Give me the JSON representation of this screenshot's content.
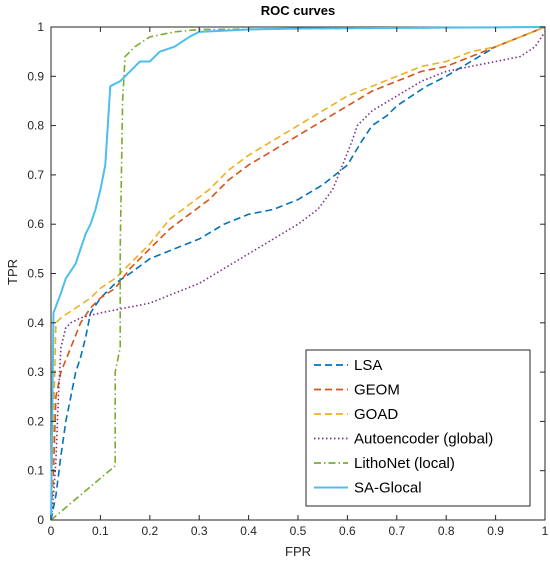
{
  "chart_data": {
    "type": "line",
    "title": "ROC curves",
    "xlabel": "FPR",
    "ylabel": "TPR",
    "xlim": [
      0,
      1
    ],
    "ylim": [
      0,
      1
    ],
    "xticks": [
      0,
      0.1,
      0.2,
      0.3,
      0.4,
      0.5,
      0.6,
      0.7,
      0.8,
      0.9,
      1
    ],
    "xtick_labels": [
      "0",
      "0.1",
      "0.2",
      "0.3",
      "0.4",
      "0.5",
      "0.6",
      "0.7",
      "0.8",
      "0.9",
      "1"
    ],
    "yticks": [
      0,
      0.1,
      0.2,
      0.3,
      0.4,
      0.5,
      0.6,
      0.7,
      0.8,
      0.9,
      1
    ],
    "ytick_labels": [
      "0",
      "0.1",
      "0.2",
      "0.3",
      "0.4",
      "0.5",
      "0.6",
      "0.7",
      "0.8",
      "0.9",
      "1"
    ],
    "grid": false,
    "legend_position": "bottom-right",
    "series": [
      {
        "name": "LSA",
        "color": "#0072BD",
        "dash": "dashed",
        "points": [
          [
            0,
            0
          ],
          [
            0.01,
            0.05
          ],
          [
            0.02,
            0.13
          ],
          [
            0.03,
            0.2
          ],
          [
            0.04,
            0.25
          ],
          [
            0.05,
            0.3
          ],
          [
            0.06,
            0.33
          ],
          [
            0.07,
            0.37
          ],
          [
            0.08,
            0.42
          ],
          [
            0.1,
            0.45
          ],
          [
            0.13,
            0.48
          ],
          [
            0.16,
            0.5
          ],
          [
            0.2,
            0.53
          ],
          [
            0.25,
            0.55
          ],
          [
            0.3,
            0.57
          ],
          [
            0.35,
            0.6
          ],
          [
            0.4,
            0.62
          ],
          [
            0.45,
            0.63
          ],
          [
            0.5,
            0.65
          ],
          [
            0.55,
            0.68
          ],
          [
            0.6,
            0.72
          ],
          [
            0.63,
            0.77
          ],
          [
            0.65,
            0.8
          ],
          [
            0.68,
            0.82
          ],
          [
            0.7,
            0.84
          ],
          [
            0.73,
            0.86
          ],
          [
            0.76,
            0.88
          ],
          [
            0.8,
            0.9
          ],
          [
            0.85,
            0.93
          ],
          [
            0.9,
            0.96
          ],
          [
            0.95,
            0.98
          ],
          [
            1,
            1
          ]
        ]
      },
      {
        "name": "GEOM",
        "color": "#D95319",
        "dash": "dashed",
        "points": [
          [
            0,
            0
          ],
          [
            0.005,
            0.1
          ],
          [
            0.01,
            0.25
          ],
          [
            0.02,
            0.3
          ],
          [
            0.04,
            0.35
          ],
          [
            0.06,
            0.4
          ],
          [
            0.08,
            0.43
          ],
          [
            0.1,
            0.45
          ],
          [
            0.13,
            0.47
          ],
          [
            0.16,
            0.51
          ],
          [
            0.2,
            0.55
          ],
          [
            0.24,
            0.59
          ],
          [
            0.28,
            0.62
          ],
          [
            0.32,
            0.65
          ],
          [
            0.36,
            0.69
          ],
          [
            0.4,
            0.72
          ],
          [
            0.45,
            0.75
          ],
          [
            0.5,
            0.78
          ],
          [
            0.55,
            0.81
          ],
          [
            0.6,
            0.84
          ],
          [
            0.65,
            0.87
          ],
          [
            0.7,
            0.89
          ],
          [
            0.75,
            0.91
          ],
          [
            0.8,
            0.92
          ],
          [
            0.85,
            0.94
          ],
          [
            0.9,
            0.96
          ],
          [
            0.95,
            0.98
          ],
          [
            1,
            1
          ]
        ]
      },
      {
        "name": "GOAD",
        "color": "#EDB120",
        "dash": "dashed",
        "points": [
          [
            0,
            0
          ],
          [
            0.005,
            0.2
          ],
          [
            0.01,
            0.4
          ],
          [
            0.02,
            0.41
          ],
          [
            0.05,
            0.43
          ],
          [
            0.08,
            0.45
          ],
          [
            0.1,
            0.47
          ],
          [
            0.13,
            0.49
          ],
          [
            0.16,
            0.52
          ],
          [
            0.2,
            0.56
          ],
          [
            0.24,
            0.61
          ],
          [
            0.28,
            0.64
          ],
          [
            0.32,
            0.67
          ],
          [
            0.36,
            0.71
          ],
          [
            0.4,
            0.74
          ],
          [
            0.45,
            0.77
          ],
          [
            0.5,
            0.8
          ],
          [
            0.55,
            0.83
          ],
          [
            0.6,
            0.86
          ],
          [
            0.65,
            0.88
          ],
          [
            0.7,
            0.9
          ],
          [
            0.75,
            0.92
          ],
          [
            0.8,
            0.93
          ],
          [
            0.85,
            0.95
          ],
          [
            0.9,
            0.96
          ],
          [
            0.95,
            0.98
          ],
          [
            1,
            1
          ]
        ]
      },
      {
        "name": "Autoencoder (global)",
        "color": "#7E2F8E",
        "dash": "dotted",
        "points": [
          [
            0,
            0
          ],
          [
            0.005,
            0.05
          ],
          [
            0.01,
            0.12
          ],
          [
            0.015,
            0.25
          ],
          [
            0.02,
            0.35
          ],
          [
            0.03,
            0.39
          ],
          [
            0.04,
            0.4
          ],
          [
            0.06,
            0.41
          ],
          [
            0.1,
            0.42
          ],
          [
            0.15,
            0.43
          ],
          [
            0.2,
            0.44
          ],
          [
            0.25,
            0.46
          ],
          [
            0.3,
            0.48
          ],
          [
            0.35,
            0.51
          ],
          [
            0.4,
            0.54
          ],
          [
            0.45,
            0.57
          ],
          [
            0.5,
            0.6
          ],
          [
            0.54,
            0.63
          ],
          [
            0.57,
            0.67
          ],
          [
            0.59,
            0.72
          ],
          [
            0.61,
            0.77
          ],
          [
            0.62,
            0.8
          ],
          [
            0.65,
            0.83
          ],
          [
            0.7,
            0.86
          ],
          [
            0.75,
            0.89
          ],
          [
            0.8,
            0.91
          ],
          [
            0.85,
            0.92
          ],
          [
            0.9,
            0.93
          ],
          [
            0.95,
            0.94
          ],
          [
            0.98,
            0.96
          ],
          [
            1,
            0.99
          ]
        ]
      },
      {
        "name": "LithoNet (local)",
        "color": "#77AC30",
        "dash": "dashdot",
        "points": [
          [
            0,
            0
          ],
          [
            0.13,
            0.11
          ],
          [
            0.13,
            0.3
          ],
          [
            0.14,
            0.35
          ],
          [
            0.14,
            0.55
          ],
          [
            0.145,
            0.85
          ],
          [
            0.15,
            0.94
          ],
          [
            0.17,
            0.96
          ],
          [
            0.2,
            0.98
          ],
          [
            0.25,
            0.99
          ],
          [
            0.3,
            0.995
          ],
          [
            1,
            1
          ]
        ]
      },
      {
        "name": "SA-Glocal",
        "color": "#4DBEEE",
        "dash": "solid",
        "points": [
          [
            0,
            0
          ],
          [
            0.005,
            0.42
          ],
          [
            0.02,
            0.46
          ],
          [
            0.03,
            0.49
          ],
          [
            0.05,
            0.52
          ],
          [
            0.06,
            0.55
          ],
          [
            0.07,
            0.58
          ],
          [
            0.08,
            0.6
          ],
          [
            0.09,
            0.63
          ],
          [
            0.1,
            0.67
          ],
          [
            0.11,
            0.72
          ],
          [
            0.115,
            0.8
          ],
          [
            0.12,
            0.88
          ],
          [
            0.14,
            0.89
          ],
          [
            0.16,
            0.91
          ],
          [
            0.18,
            0.93
          ],
          [
            0.2,
            0.93
          ],
          [
            0.22,
            0.95
          ],
          [
            0.25,
            0.96
          ],
          [
            0.28,
            0.98
          ],
          [
            0.3,
            0.99
          ],
          [
            0.4,
            0.995
          ],
          [
            0.5,
            0.997
          ],
          [
            1,
            1
          ]
        ]
      }
    ]
  }
}
